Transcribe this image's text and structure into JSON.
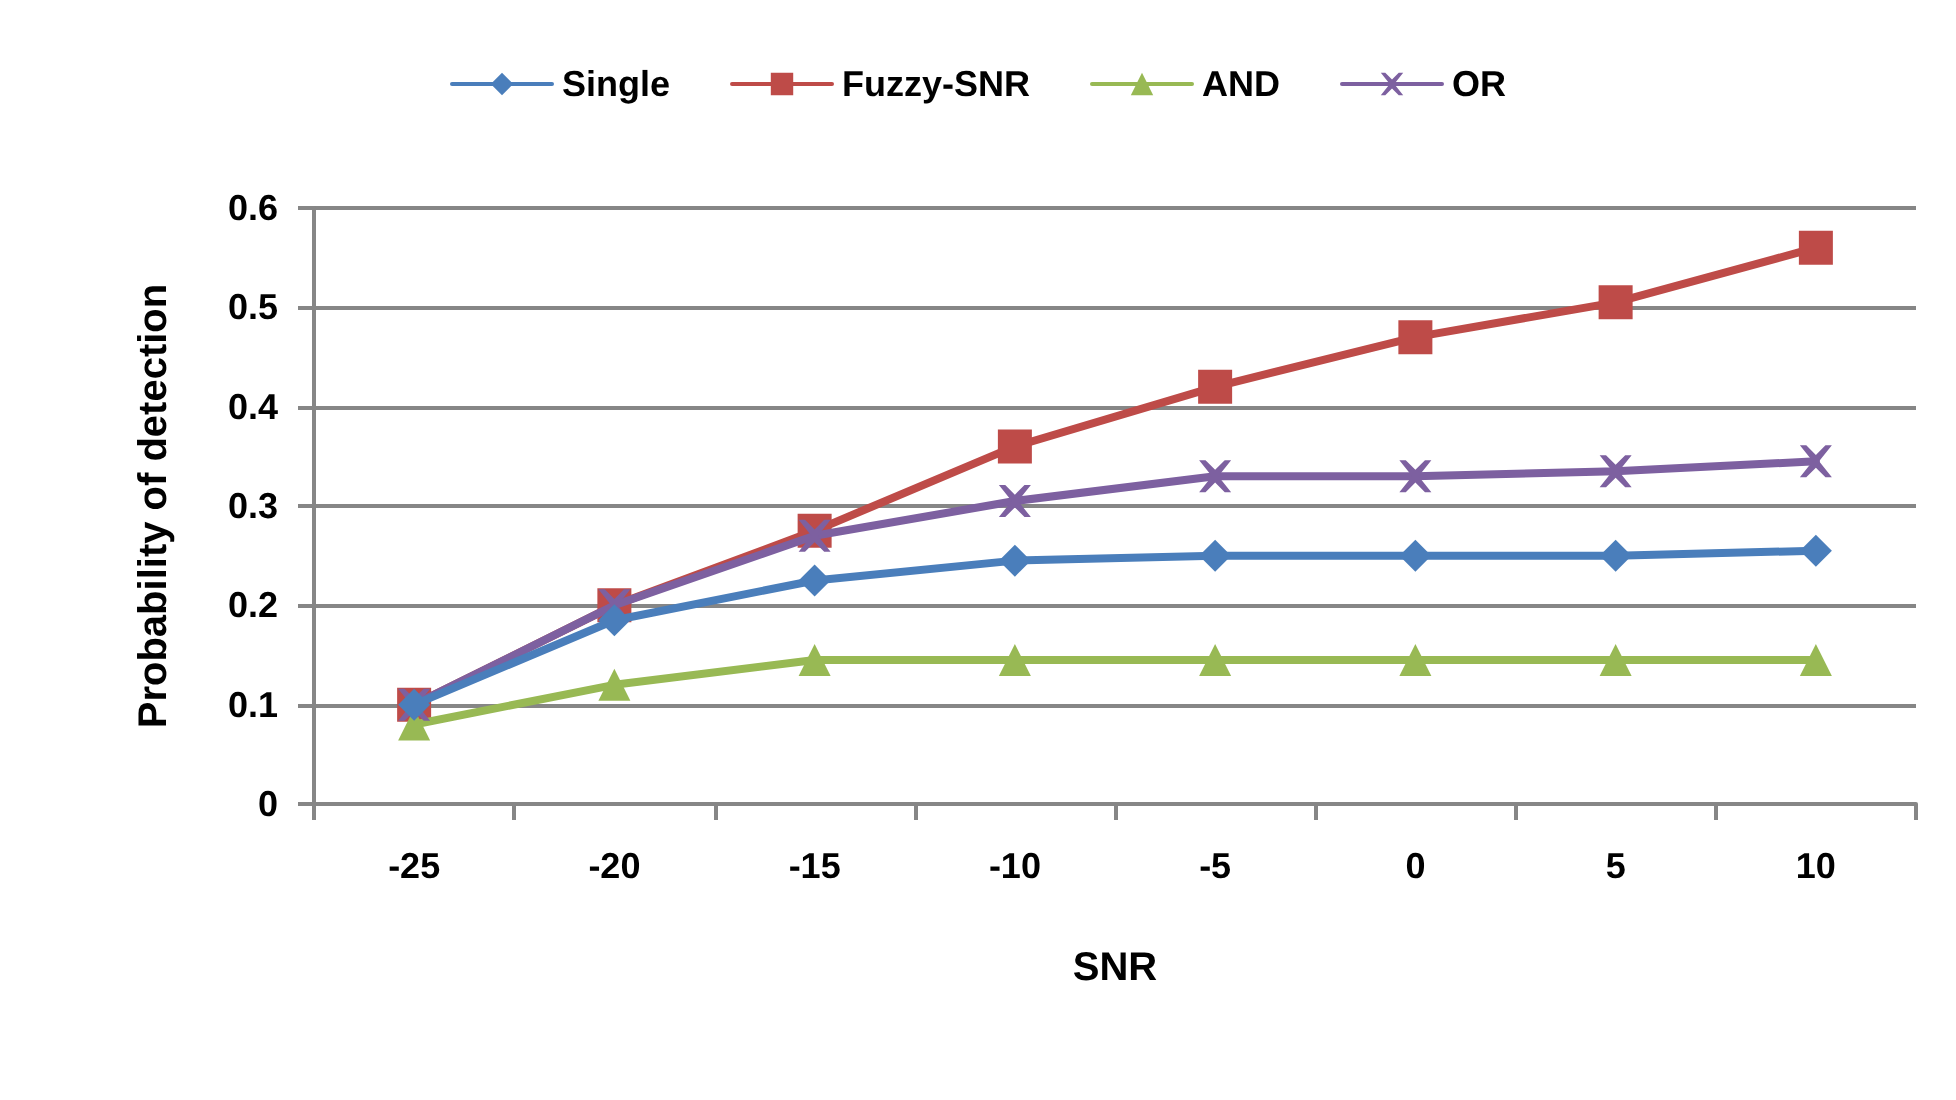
{
  "chart_data": {
    "type": "line",
    "xlabel": "SNR",
    "ylabel": "Probability of detection",
    "categories": [
      "-25",
      "-20",
      "-15",
      "-10",
      "-5",
      "0",
      "5",
      "10"
    ],
    "series": [
      {
        "name": "Single",
        "color": "#4a7ebb",
        "marker": "diamond",
        "values": [
          0.1,
          0.185,
          0.225,
          0.245,
          0.25,
          0.25,
          0.25,
          0.255
        ]
      },
      {
        "name": "Fuzzy-SNR",
        "color": "#be4b48",
        "marker": "square",
        "values": [
          0.1,
          0.2,
          0.275,
          0.36,
          0.42,
          0.47,
          0.505,
          0.56
        ]
      },
      {
        "name": "AND",
        "color": "#98b954",
        "marker": "triangle",
        "values": [
          0.08,
          0.12,
          0.145,
          0.145,
          0.145,
          0.145,
          0.145,
          0.145
        ]
      },
      {
        "name": "OR",
        "color": "#7d60a0",
        "marker": "cross",
        "values": [
          0.1,
          0.2,
          0.27,
          0.305,
          0.33,
          0.33,
          0.335,
          0.345
        ]
      }
    ],
    "ylim": [
      0,
      0.6
    ],
    "yticks": [
      0,
      0.1,
      0.2,
      0.3,
      0.4,
      0.5,
      0.6
    ],
    "grid": "y",
    "legend": "top"
  }
}
